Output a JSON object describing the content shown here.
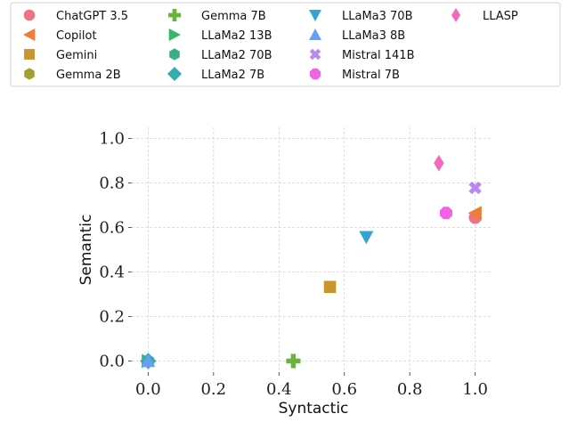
{
  "chart_data": {
    "type": "scatter",
    "xlabel": "Syntactic",
    "ylabel": "Semantic",
    "xlim": [
      -0.05,
      1.05
    ],
    "ylim": [
      -0.05,
      1.05
    ],
    "xticks": [
      "0.0",
      "0.2",
      "0.4",
      "0.6",
      "0.8",
      "1.0"
    ],
    "yticks": [
      "0.0",
      "0.2",
      "0.4",
      "0.6",
      "0.8",
      "1.0"
    ],
    "grid": true,
    "legend_position": "top",
    "series": [
      {
        "name": "ChatGPT 3.5",
        "marker": "circle",
        "color": "#f07480",
        "points": [
          [
            1.0,
            0.645
          ]
        ]
      },
      {
        "name": "Copilot",
        "marker": "triangle-left",
        "color": "#ee7d37",
        "points": [
          [
            1.0,
            0.665
          ]
        ]
      },
      {
        "name": "Gemini",
        "marker": "square",
        "color": "#c9952f",
        "points": [
          [
            0.556,
            0.333
          ]
        ]
      },
      {
        "name": "Gemma 2B",
        "marker": "hexagon",
        "color": "#a1a131",
        "points": [
          [
            0.0,
            0.0
          ]
        ]
      },
      {
        "name": "Gemma 7B",
        "marker": "plus",
        "color": "#67b638",
        "points": [
          [
            0.444,
            0.0
          ]
        ]
      },
      {
        "name": "LLaMa2 13B",
        "marker": "triangle-right",
        "color": "#37b768",
        "points": [
          [
            0.0,
            0.0
          ]
        ]
      },
      {
        "name": "LLaMa2 70B",
        "marker": "hexagon",
        "color": "#37b08a",
        "points": [
          [
            0.0,
            0.0
          ]
        ]
      },
      {
        "name": "LLaMa2 7B",
        "marker": "diamond",
        "color": "#36adac",
        "points": [
          [
            0.0,
            0.0
          ]
        ]
      },
      {
        "name": "LLaMa3 70B",
        "marker": "triangle-down",
        "color": "#34a4d2",
        "points": [
          [
            0.667,
            0.557
          ]
        ]
      },
      {
        "name": "LLaMa3 8B",
        "marker": "triangle-up",
        "color": "#6a9ef4",
        "points": [
          [
            0.0,
            0.0
          ]
        ]
      },
      {
        "name": "Mistral 141B",
        "marker": "x",
        "color": "#b88af0",
        "points": [
          [
            1.0,
            0.778
          ]
        ]
      },
      {
        "name": "Mistral 7B",
        "marker": "octagon",
        "color": "#f262e6",
        "points": [
          [
            0.911,
            0.665
          ]
        ]
      },
      {
        "name": "LLASP",
        "marker": "thin-diamond",
        "color": "#f06abf",
        "points": [
          [
            0.889,
            0.889
          ]
        ]
      }
    ]
  }
}
